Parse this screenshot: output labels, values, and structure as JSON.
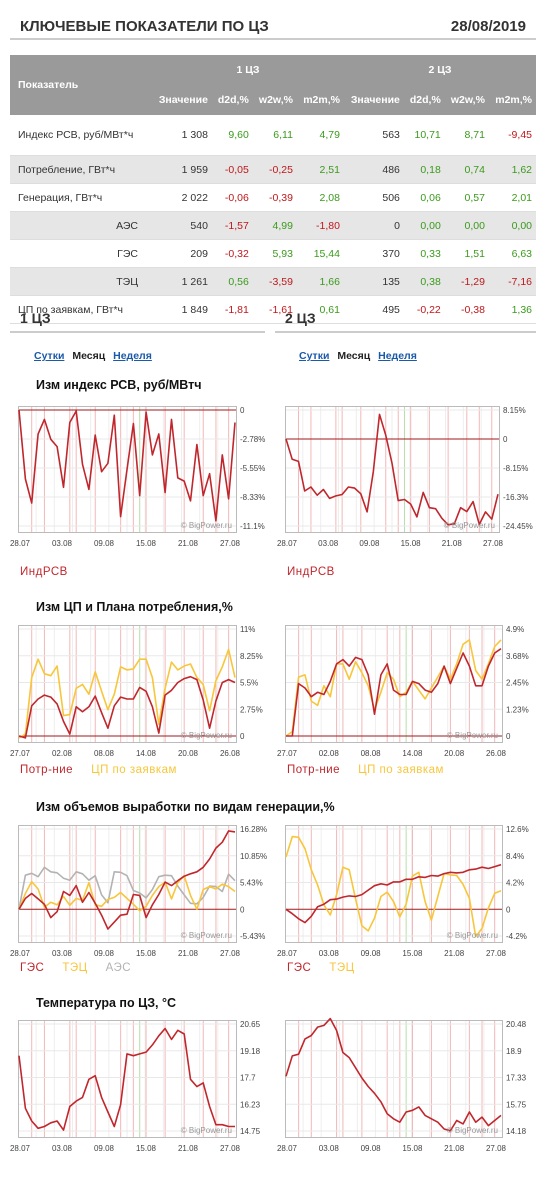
{
  "header": {
    "title": "КЛЮЧЕВЫЕ ПОКАЗАТЕЛИ ПО ЦЗ",
    "date": "28/08/2019"
  },
  "table": {
    "col_label": "Показатель",
    "group1": "1 ЦЗ",
    "group2": "2 ЦЗ",
    "cols": [
      "Значение",
      "d2d,%",
      "w2w,%",
      "m2m,%",
      "Значение",
      "d2d,%",
      "w2w,%",
      "m2m,%"
    ],
    "rows": [
      {
        "name": "Индекс РСВ, руб/МВт*ч",
        "values": [
          "1 308",
          "9,60",
          "6,11",
          "4,79",
          "563",
          "10,71",
          "8,71",
          "-9,45"
        ]
      },
      {
        "name": "Потребление, ГВт*ч",
        "values": [
          "1 959",
          "-0,05",
          "-0,25",
          "2,51",
          "486",
          "0,18",
          "0,74",
          "1,62"
        ]
      },
      {
        "name": "Генерация, ГВт*ч",
        "values": [
          "2 022",
          "-0,06",
          "-0,39",
          "2,08",
          "506",
          "0,06",
          "0,57",
          "2,01"
        ]
      },
      {
        "name": "АЭС",
        "values": [
          "540",
          "-1,57",
          "4,99",
          "-1,80",
          "0",
          "0,00",
          "0,00",
          "0,00"
        ]
      },
      {
        "name": "ГЭС",
        "values": [
          "209",
          "-0,32",
          "5,93",
          "15,44",
          "370",
          "0,33",
          "1,51",
          "6,63"
        ]
      },
      {
        "name": "ТЭЦ",
        "values": [
          "1 261",
          "0,56",
          "-3,59",
          "1,66",
          "135",
          "0,38",
          "-1,29",
          "-7,16"
        ]
      },
      {
        "name": "ЦП по заявкам, ГВт*ч",
        "values": [
          "1 849",
          "-1,81",
          "-1,61",
          "0,61",
          "495",
          "-0,22",
          "-0,38",
          "1,36"
        ]
      }
    ]
  },
  "sections": {
    "left": {
      "title": "1 ЦЗ",
      "tab1": "Сутки",
      "tab2": "Месяц",
      "tab3": "Неделя"
    },
    "right": {
      "title": "2 ЦЗ",
      "tab1": "Сутки",
      "tab2": "Месяц",
      "tab3": "Неделя"
    }
  },
  "colors": {
    "red": "#c0272d",
    "yellow": "#f7c63a",
    "gray": "#b3b3b3"
  },
  "watermark": "© BigPower.ru",
  "chart_data": [
    {
      "id": "rsv1",
      "type": "line",
      "title": "Изм индекс РСВ, руб/МВтч",
      "x_ticks": [
        "28.07",
        "03.08",
        "09.08",
        "15.08",
        "21.08",
        "27.08"
      ],
      "y_ticks": [
        "0",
        "-2.78%",
        "-5.55%",
        "-8.33%",
        "-11.1%"
      ],
      "ylim": [
        -11.1,
        0
      ],
      "series": [
        {
          "name": "ИндРСВ",
          "color": "#c0272d",
          "values": [
            0,
            -6.6,
            -8.9,
            -2.3,
            -0.9,
            -2.8,
            -3.5,
            -7.4,
            -1.2,
            -0.1,
            -5.2,
            -7.6,
            -2.4,
            -5.9,
            -5.1,
            -0.5,
            -10.2,
            -5.7,
            -1.3,
            -8.2,
            -0.2,
            -4.3,
            -2.3,
            -7.9,
            -0.9,
            -6.5,
            -6.8,
            -8.7,
            -3.3,
            -8.2,
            -6.1,
            -10.6,
            -4.3,
            -8.5,
            -1.2
          ]
        }
      ]
    },
    {
      "id": "rsv2",
      "type": "line",
      "title": "",
      "x_ticks": [
        "28.07",
        "03.08",
        "09.08",
        "15.08",
        "21.08",
        "27.08"
      ],
      "y_ticks": [
        "8.15%",
        "0",
        "-8.15%",
        "-16.3%",
        "-24.45%"
      ],
      "ylim": [
        -24.45,
        8.15
      ],
      "series": [
        {
          "name": "ИндРСВ",
          "color": "#c0272d",
          "values": [
            0,
            -5.7,
            -6.3,
            -14.6,
            -13.5,
            -15.8,
            -14.2,
            -16.7,
            -16.0,
            -15.6,
            -13.5,
            -13.8,
            -15.4,
            -20.5,
            -9.2,
            6.9,
            1.0,
            -6.8,
            -17.3,
            -17.0,
            -18.3,
            -21.9,
            -15.0,
            -19.3,
            -19.6,
            -22.3,
            -24.1,
            -23.8,
            -19.3,
            -20.4,
            -17.6,
            -24.0,
            -20.5,
            -22.5,
            -15.5
          ]
        }
      ]
    },
    {
      "id": "cp1",
      "type": "line",
      "title": "Изм ЦП и Плана потребления,%",
      "x_ticks": [
        "27.07",
        "02.08",
        "08.08",
        "14.08",
        "20.08",
        "26.08"
      ],
      "y_ticks": [
        "11%",
        "8.25%",
        "5.5%",
        "2.75%",
        "0"
      ],
      "ylim": [
        0,
        11
      ],
      "series": [
        {
          "name": "Потр-ние",
          "color": "#c0272d",
          "values": [
            0,
            -0.2,
            3.1,
            3.8,
            4.2,
            4.0,
            3.3,
            1.5,
            0.2,
            3.0,
            2.5,
            3.0,
            4.1,
            2.4,
            0.8,
            3.1,
            4.0,
            3.8,
            3.8,
            5.0,
            4.6,
            3.0,
            0.3,
            4.2,
            4.7,
            5.5,
            5.9,
            6.1,
            5.8,
            3.7,
            0.8,
            3.6,
            5.5,
            5.8,
            5.5
          ]
        },
        {
          "name": "ЦП по заявкам",
          "color": "#f7c63a",
          "values": [
            -0.2,
            0.2,
            6.0,
            7.9,
            6.4,
            6.2,
            7.2,
            2.1,
            2.2,
            4.9,
            5.3,
            4.3,
            6.6,
            4.6,
            2.7,
            4.3,
            7.1,
            6.8,
            6.9,
            7.9,
            7.9,
            6.0,
            1.2,
            4.9,
            7.6,
            6.8,
            7.2,
            7.4,
            6.0,
            5.3,
            2.6,
            5.7,
            7.1,
            8.9,
            6.0
          ]
        }
      ]
    },
    {
      "id": "cp2",
      "type": "line",
      "title": "",
      "x_ticks": [
        "27.07",
        "02.08",
        "08.08",
        "14.08",
        "20.08",
        "26.08"
      ],
      "y_ticks": [
        "4.9%",
        "3.68%",
        "2.45%",
        "1.23%",
        "0"
      ],
      "ylim": [
        0,
        4.9
      ],
      "series": [
        {
          "name": "Потр-ние",
          "color": "#c0272d",
          "values": [
            0,
            0,
            2.4,
            2.2,
            1.8,
            2.0,
            1.9,
            2.5,
            3.3,
            3.5,
            3.2,
            3.6,
            3.5,
            2.8,
            1.0,
            2.8,
            3.3,
            2.1,
            1.9,
            1.9,
            2.5,
            2.4,
            2.1,
            2.0,
            2.4,
            3.2,
            2.4,
            3.1,
            3.8,
            3.2,
            2.3,
            2.3,
            3.2,
            3.8,
            4.0
          ]
        },
        {
          "name": "ЦП по заявкам",
          "color": "#f7c63a",
          "values": [
            0,
            0.2,
            2.7,
            2.8,
            1.6,
            1.4,
            2.3,
            1.8,
            3.3,
            3.3,
            2.6,
            3.4,
            2.9,
            2.3,
            1.2,
            2.0,
            2.9,
            2.6,
            1.8,
            2.0,
            2.5,
            2.1,
            1.7,
            2.2,
            2.7,
            3.2,
            2.6,
            3.3,
            4.2,
            4.4,
            3.0,
            2.6,
            3.3,
            4.1,
            4.4
          ]
        }
      ]
    },
    {
      "id": "gen1",
      "type": "line",
      "title": "Изм объемов выработки по видам генерации,%",
      "x_ticks": [
        "28.07",
        "03.08",
        "09.08",
        "15.08",
        "21.08",
        "27.08"
      ],
      "y_ticks": [
        "16.28%",
        "10.85%",
        "5.43%",
        "0",
        "-5.43%"
      ],
      "ylim": [
        -5.43,
        16.28
      ],
      "series": [
        {
          "name": "ГЭС",
          "color": "#c0272d",
          "values": [
            0,
            2.2,
            3.2,
            2.1,
            1.0,
            -1.7,
            -0.5,
            3.6,
            2.8,
            4.8,
            1.4,
            3.4,
            1.2,
            -1.2,
            -4.0,
            -2.6,
            -1.2,
            -1.0,
            3.0,
            2.8,
            -1.7,
            0.9,
            3.0,
            5.5,
            4.8,
            5.8,
            6.7,
            7.2,
            7.6,
            8.5,
            10.2,
            12.4,
            13.6,
            15.9,
            15.7
          ]
        },
        {
          "name": "ТЭЦ",
          "color": "#f7c63a",
          "values": [
            0,
            3.2,
            5.6,
            4.1,
            0.4,
            1.4,
            0.9,
            2.6,
            0.8,
            2.2,
            1.8,
            5.4,
            0.9,
            0.6,
            2.0,
            2.4,
            3.4,
            2.2,
            1.0,
            -0.3,
            0.6,
            2.8,
            4.6,
            5.5,
            2.1,
            5.4,
            6.8,
            2.8,
            0.0,
            4.0,
            4.6,
            4.1,
            5.1,
            4.6,
            3.6
          ]
        },
        {
          "name": "АЭС",
          "color": "#b3b3b3",
          "values": [
            0,
            6.9,
            7.3,
            6.6,
            8.5,
            7.6,
            7.4,
            6.3,
            5.9,
            7.6,
            7.2,
            5.9,
            6.8,
            2.9,
            1.3,
            7.6,
            7.5,
            6.8,
            3.8,
            3.3,
            2.3,
            4.0,
            6.6,
            6.9,
            6.8,
            4.7,
            2.9,
            1.2,
            1.1,
            2.4,
            4.7,
            4.6,
            3.6,
            7.1,
            5.8
          ]
        }
      ]
    },
    {
      "id": "gen2",
      "type": "line",
      "title": "",
      "x_ticks": [
        "28.07",
        "03.08",
        "09.08",
        "15.08",
        "21.08",
        "27.08"
      ],
      "y_ticks": [
        "12.6%",
        "8.4%",
        "4.2%",
        "0",
        "-4.2%"
      ],
      "ylim": [
        -4.2,
        12.6
      ],
      "series": [
        {
          "name": "ГЭС",
          "color": "#c0272d",
          "values": [
            0,
            -0.7,
            -1.5,
            -2.1,
            -1.1,
            0.4,
            0.8,
            1.5,
            1.6,
            1.9,
            2.1,
            2.0,
            2.3,
            3.0,
            3.7,
            4.0,
            3.8,
            4.3,
            4.3,
            4.7,
            4.7,
            5.1,
            5.0,
            5.3,
            5.2,
            5.6,
            5.8,
            5.7,
            5.8,
            6.2,
            6.3,
            6.6,
            6.4,
            6.7,
            7.0
          ]
        },
        {
          "name": "ТЭЦ",
          "color": "#f7c63a",
          "values": [
            8.2,
            11.4,
            11.3,
            9.5,
            6.2,
            3.8,
            0.7,
            -0.9,
            2.3,
            6.6,
            6.2,
            1.6,
            -2.6,
            -3.4,
            -1.4,
            2.0,
            2.7,
            1.2,
            -1.2,
            0.8,
            5.2,
            5.8,
            1.2,
            -1.7,
            2.0,
            5.6,
            5.4,
            5.3,
            3.9,
            1.7,
            -4.3,
            -3.0,
            0.2,
            2.5,
            2.9
          ]
        }
      ]
    },
    {
      "id": "temp1",
      "type": "line",
      "title": "Температура по ЦЗ, °С",
      "x_ticks": [
        "28.07",
        "03.08",
        "09.08",
        "15.08",
        "21.08",
        "27.08"
      ],
      "y_ticks": [
        "20.65",
        "19.18",
        "17.7",
        "16.23",
        "14.75"
      ],
      "ylim": [
        14.75,
        20.65
      ],
      "series": [
        {
          "name": "Температура",
          "color": "#c0272d",
          "values": [
            18.9,
            16.0,
            15.3,
            14.9,
            15.0,
            15.2,
            15.3,
            14.8,
            16.1,
            16.4,
            16.6,
            17.6,
            17.8,
            16.6,
            15.8,
            15.0,
            16.2,
            19.0,
            18.9,
            19.0,
            19.1,
            19.5,
            20.0,
            20.4,
            19.8,
            20.3,
            20.1,
            17.6,
            17.2,
            17.4,
            16.1,
            15.1,
            15.1,
            15.0,
            15.0
          ]
        }
      ]
    },
    {
      "id": "temp2",
      "type": "line",
      "title": "",
      "x_ticks": [
        "28.07",
        "03.08",
        "09.08",
        "15.08",
        "21.08",
        "27.08"
      ],
      "y_ticks": [
        "20.48",
        "18.9",
        "17.33",
        "15.75",
        "14.18"
      ],
      "ylim": [
        14.18,
        20.48
      ],
      "series": [
        {
          "name": "Температура",
          "color": "#c0272d",
          "values": [
            17.4,
            18.6,
            18.7,
            19.6,
            19.8,
            20.3,
            20.4,
            20.8,
            20.1,
            18.8,
            18.5,
            17.9,
            17.3,
            16.8,
            16.4,
            15.9,
            15.2,
            14.9,
            14.7,
            15.3,
            15.4,
            15.6,
            15.1,
            14.9,
            14.7,
            14.3,
            14.2,
            14.8,
            14.6,
            15.3,
            14.7,
            15.0,
            14.5,
            14.8,
            15.1
          ]
        }
      ]
    }
  ]
}
